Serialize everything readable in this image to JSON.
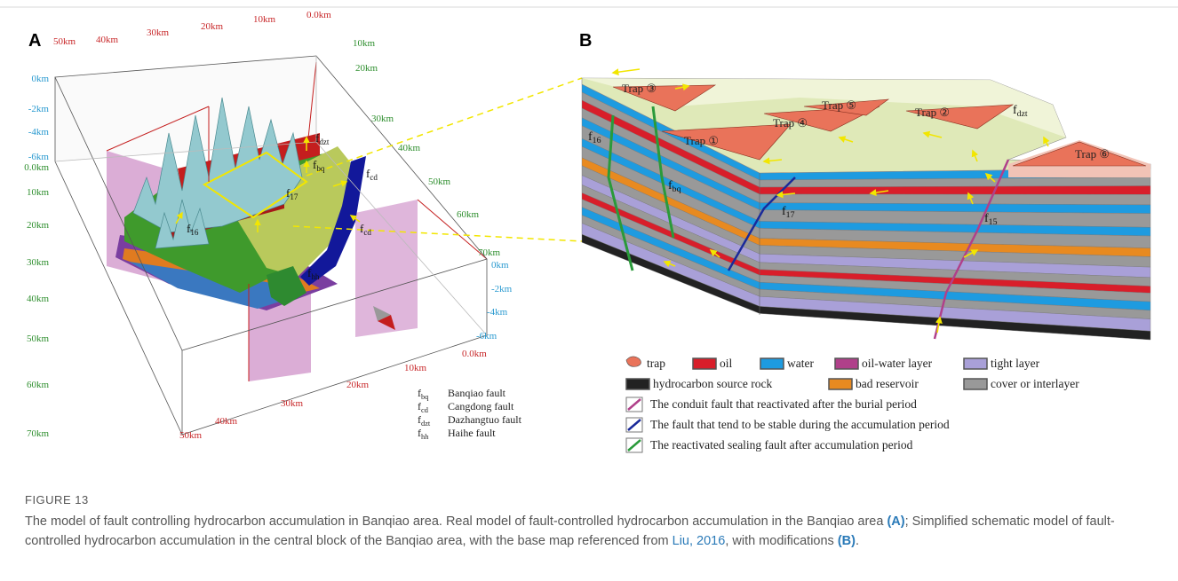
{
  "panel_a": {
    "label": "A",
    "top_axis": [
      "50km",
      "40km",
      "30km",
      "20km",
      "10km",
      "0.0km"
    ],
    "right_axis": [
      "10km",
      "20km",
      "30km",
      "40km",
      "50km",
      "60km",
      "70km"
    ],
    "left_depth": [
      "0km",
      "-2km",
      "-4km",
      "-6km"
    ],
    "left_axis": [
      "0.0km",
      "10km",
      "20km",
      "30km",
      "40km",
      "50km",
      "60km",
      "70km"
    ],
    "bottom_axis": [
      "0.0km",
      "10km",
      "20km",
      "30km",
      "40km",
      "50km"
    ],
    "right_depth": [
      "0km",
      "-2km",
      "-4km",
      "-6km"
    ],
    "fault_labels": [
      {
        "base": "f",
        "sub": "dzt"
      },
      {
        "base": "f",
        "sub": "bq"
      },
      {
        "base": "f",
        "sub": "cd"
      },
      {
        "base": "f",
        "sub": "17"
      },
      {
        "base": "f",
        "sub": "16"
      },
      {
        "base": "f",
        "sub": "cd"
      },
      {
        "base": "f",
        "sub": "hh"
      }
    ],
    "legend": [
      {
        "symbol": {
          "base": "f",
          "sub": "bq"
        },
        "name": "Banqiao fault"
      },
      {
        "symbol": {
          "base": "f",
          "sub": "cd"
        },
        "name": "Cangdong fault"
      },
      {
        "symbol": {
          "base": "f",
          "sub": "dzt"
        },
        "name": "Dazhangtuo fault"
      },
      {
        "symbol": {
          "base": "f",
          "sub": "hh"
        },
        "name": "Haihe fault"
      }
    ]
  },
  "panel_b": {
    "label": "B",
    "traps": [
      "Trap ③",
      "Trap ⑤",
      "Trap ②",
      "Trap ④",
      "Trap ①",
      "Trap ⑥"
    ],
    "fault_labels": [
      {
        "base": "f",
        "sub": "dzt"
      },
      {
        "base": "f",
        "sub": "16"
      },
      {
        "base": "f",
        "sub": "bq"
      },
      {
        "base": "f",
        "sub": "17"
      },
      {
        "base": "f",
        "sub": "15"
      }
    ],
    "legend_items": [
      "trap",
      "oil",
      "water",
      "oil-water layer",
      "tight layer",
      "hydrocarbon source rock",
      "bad reservoir",
      "cover or interlayer"
    ],
    "legend_faults": [
      "The conduit fault that reactivated after the burial period",
      "The fault that tend to be stable during the accumulation period",
      "The reactivated sealing fault after accumulation period"
    ]
  },
  "caption": {
    "figure": "FIGURE 13",
    "parts": [
      "The model of fault controlling hydrocarbon accumulation in Banqiao area. Real model of fault-controlled hydrocarbon accumulation in the Banqiao area ",
      "(A)",
      "; Simplified schematic model of fault-controlled hydrocarbon accumulation in the central block of the Banqiao area, with the base map referenced from ",
      "Liu, 2016",
      ", with modifications ",
      "(B)",
      "."
    ]
  }
}
